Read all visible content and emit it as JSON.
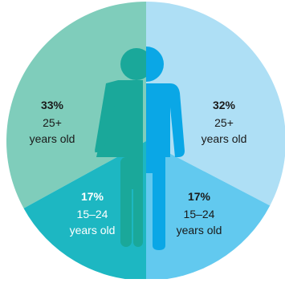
{
  "chart_data": {
    "type": "pie",
    "slices": [
      {
        "percent": "33%",
        "value": 33,
        "line1": "25+",
        "line2": "years old",
        "color": "#7fcdbb"
      },
      {
        "percent": "32%",
        "value": 32,
        "line1": "25+",
        "line2": "years old",
        "color": "#aedff5"
      },
      {
        "percent": "17%",
        "value": 17,
        "line1": "15–24",
        "line2": "years old",
        "color": "#1db7c2"
      },
      {
        "percent": "17%",
        "value": 17,
        "line1": "15–24",
        "line2": "years old",
        "color": "#62c9ef"
      }
    ],
    "figures": [
      {
        "name": "female",
        "color": "#1aa89a"
      },
      {
        "name": "male",
        "color": "#0aa7e6"
      }
    ]
  }
}
